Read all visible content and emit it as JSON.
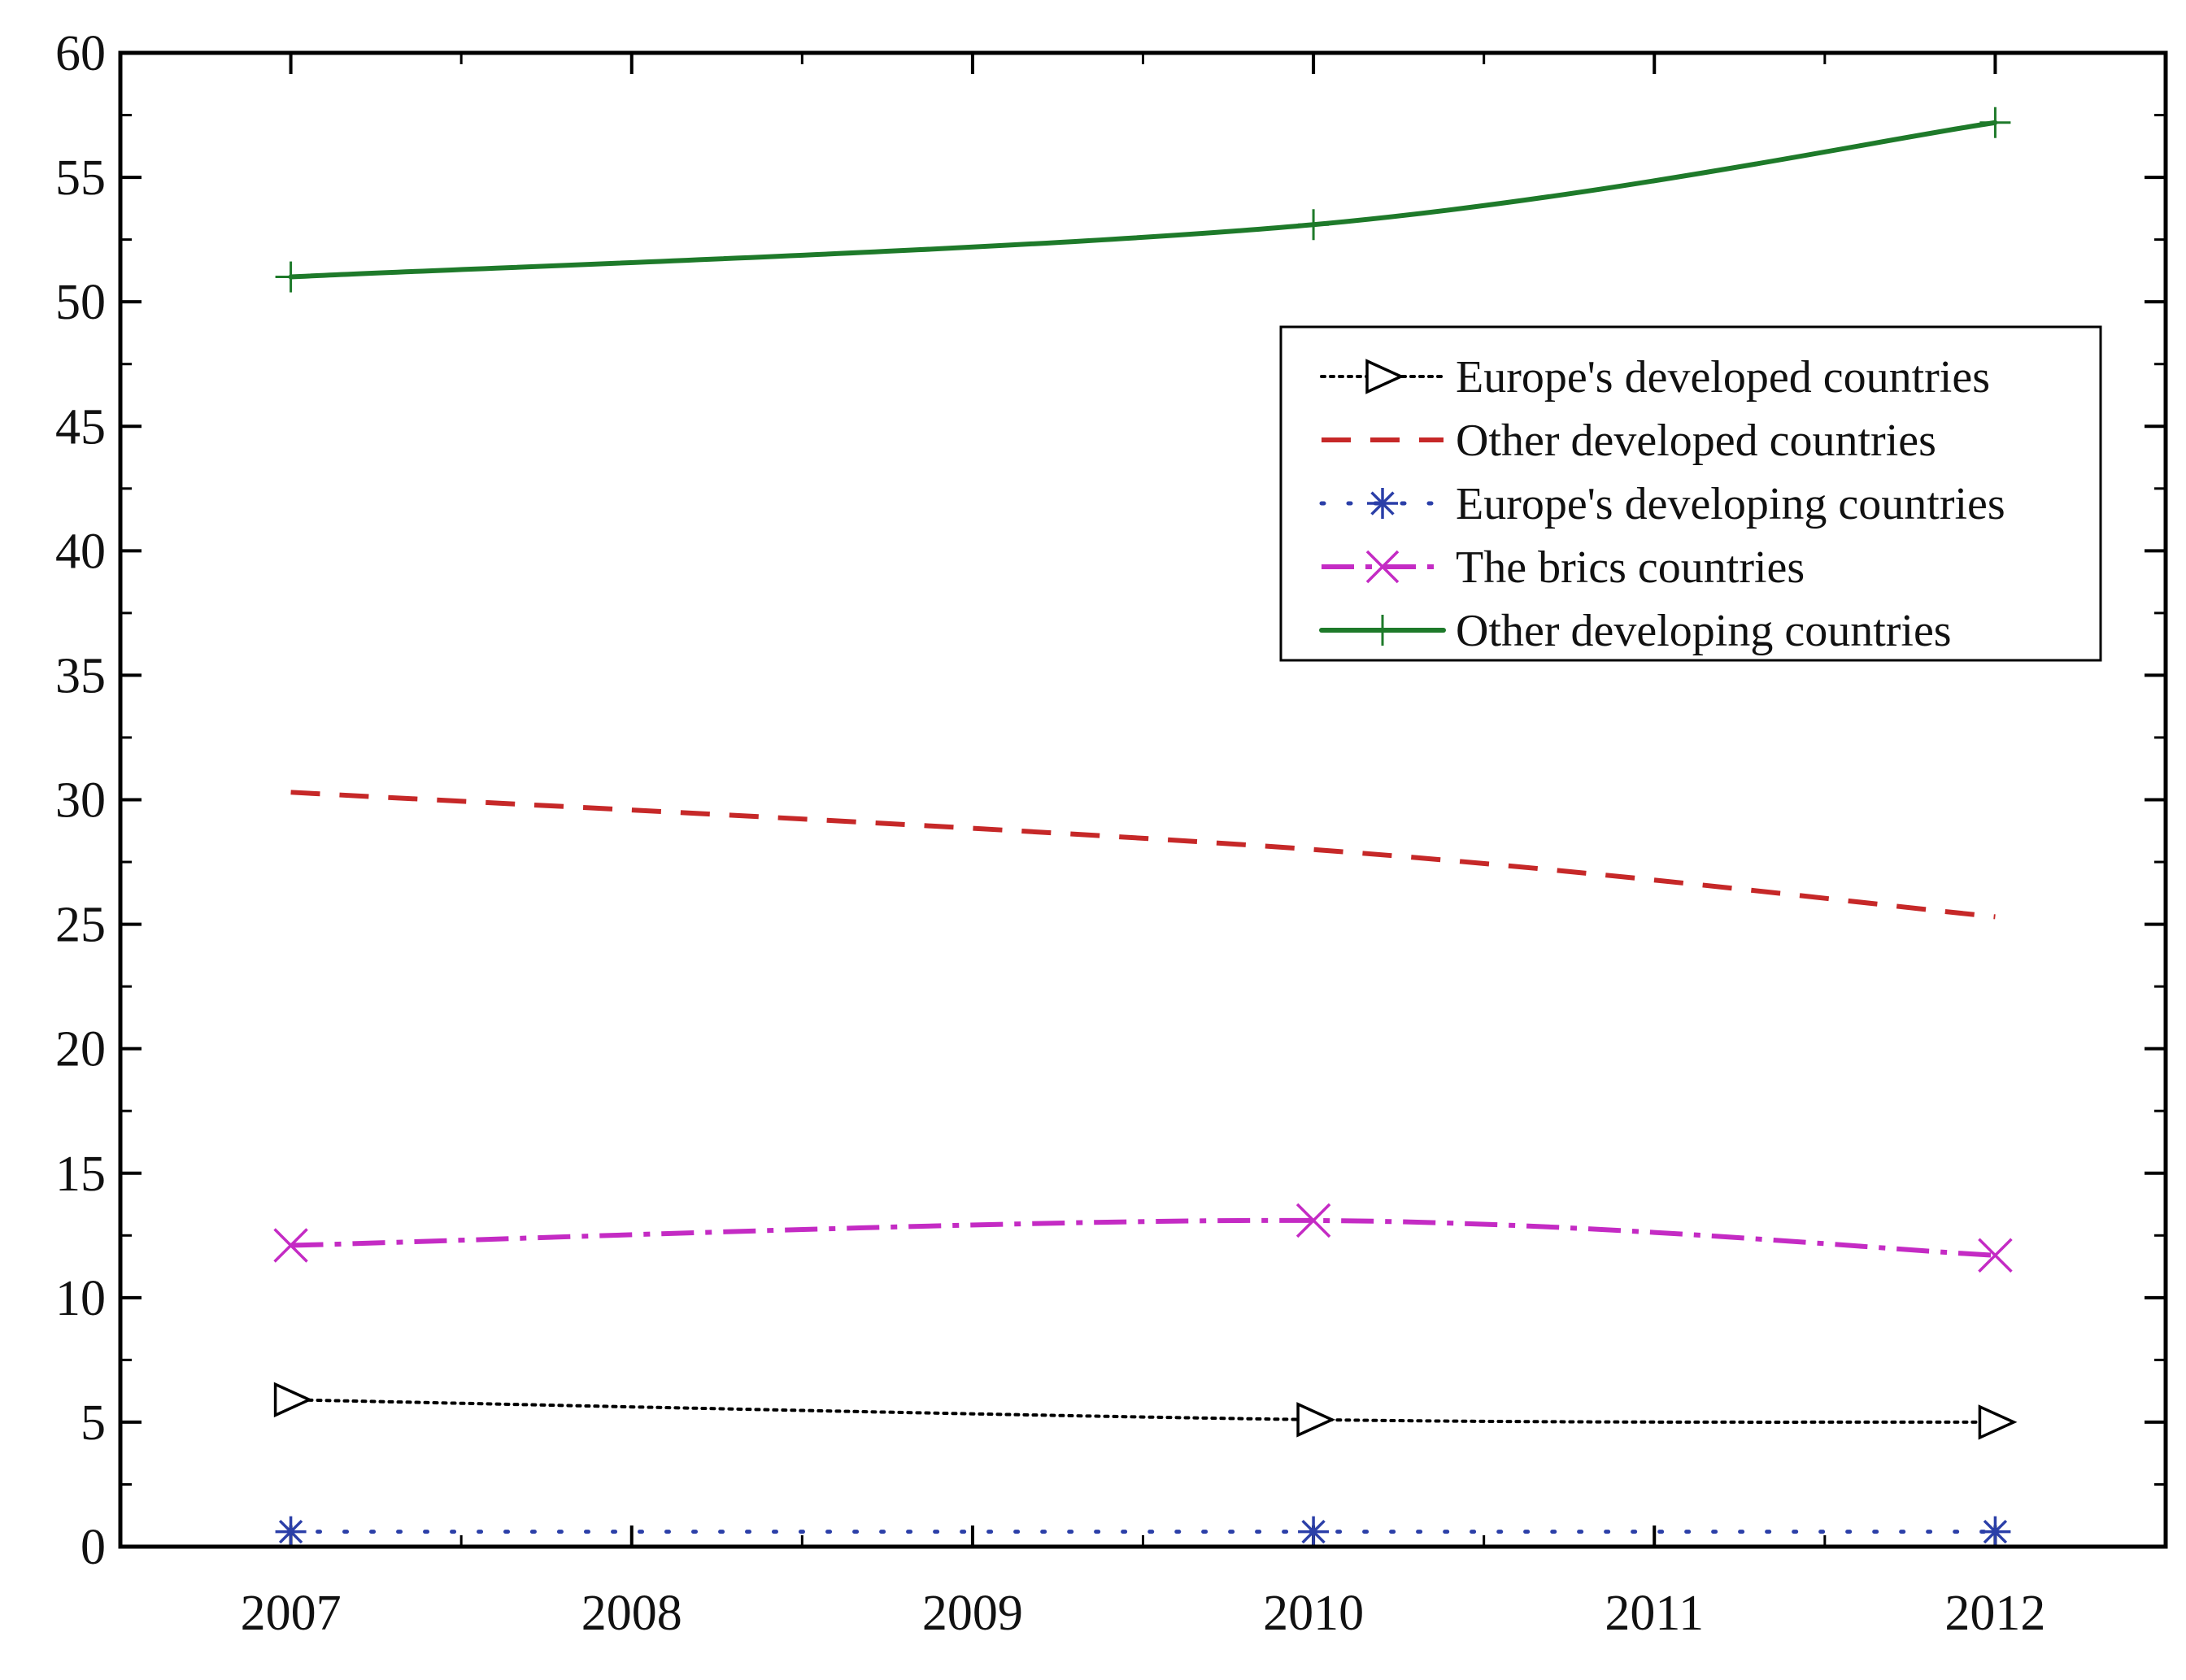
{
  "chart_data": {
    "type": "line",
    "x": [
      "2007",
      "2008",
      "2009",
      "2010",
      "2011",
      "2012"
    ],
    "xlim": [
      2006.5,
      2012.5
    ],
    "ylim": [
      0,
      60
    ],
    "y_ticks": [
      "0",
      "5",
      "10",
      "15",
      "20",
      "25",
      "30",
      "35",
      "40",
      "45",
      "50",
      "55",
      "60"
    ],
    "grid": false,
    "legend_position": "upper-right",
    "series": [
      {
        "name": "Europe's developed countries",
        "x": [
          2007,
          2010,
          2012
        ],
        "values": [
          5.9,
          5.1,
          5.0
        ],
        "color": "#000000",
        "line_style": "dotted",
        "marker": "triangle-right"
      },
      {
        "name": "Other developed countries",
        "x": [
          2007,
          2010,
          2012
        ],
        "values": [
          30.3,
          28.0,
          25.3
        ],
        "color": "#c62828",
        "line_style": "dashed",
        "marker": "none"
      },
      {
        "name": "Europe's developing countries",
        "x": [
          2007,
          2010,
          2012
        ],
        "values": [
          0.6,
          0.6,
          0.6
        ],
        "color": "#2b3fa8",
        "line_style": "dotted-sparse",
        "marker": "asterisk"
      },
      {
        "name": "The brics countries",
        "x": [
          2007,
          2010,
          2012
        ],
        "values": [
          12.1,
          13.1,
          11.7
        ],
        "color": "#c42bc4",
        "line_style": "dash-dot",
        "marker": "x"
      },
      {
        "name": "Other developing countries",
        "x": [
          2007,
          2010,
          2012
        ],
        "values": [
          51.0,
          53.1,
          57.2
        ],
        "color": "#1e7a2a",
        "line_style": "solid",
        "marker": "plus"
      }
    ]
  }
}
